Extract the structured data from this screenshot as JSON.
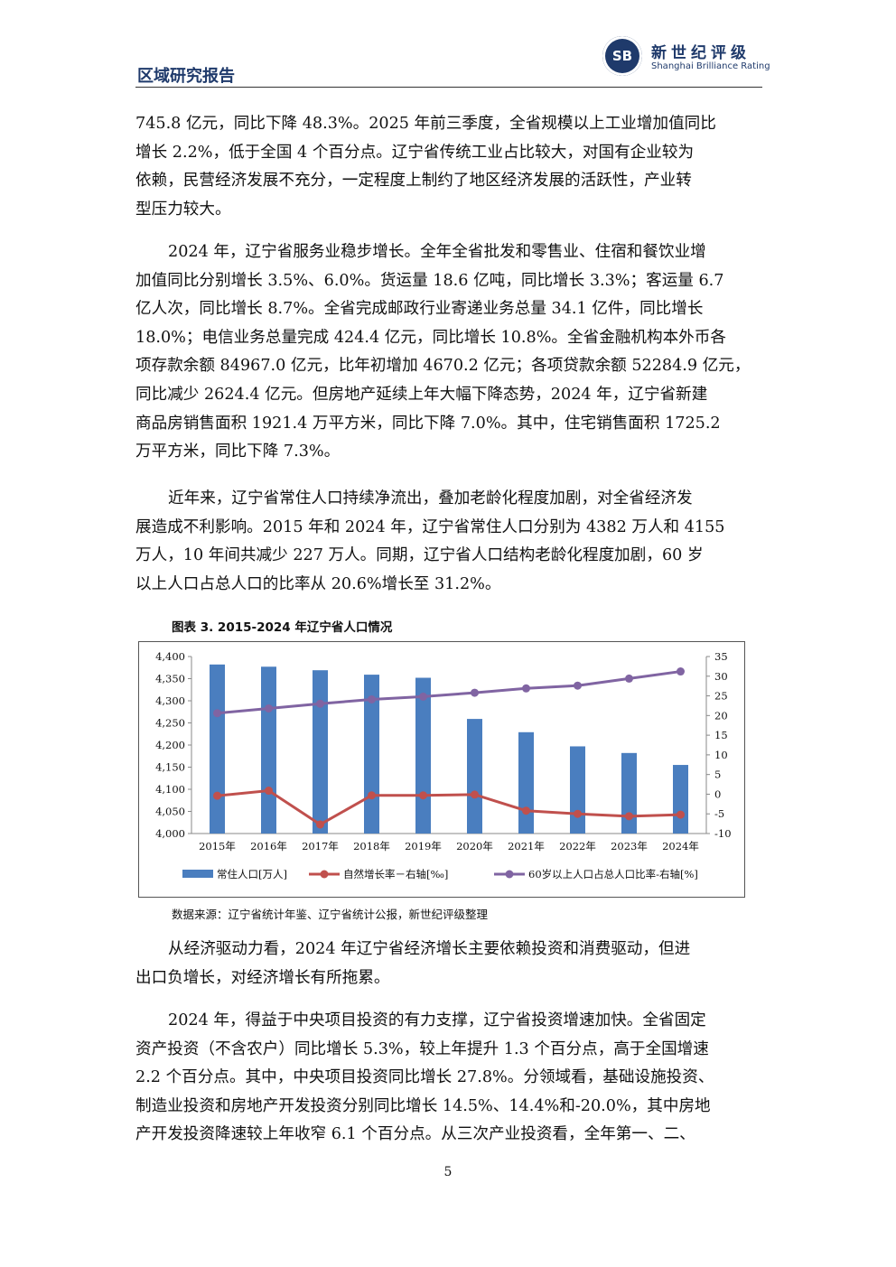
{
  "header": {
    "section_title": "区域研究报告",
    "brand_cn": "新世纪评级",
    "brand_en": "Shanghai Brilliance Rating",
    "logo_text": "SB"
  },
  "paragraphs": [
    {
      "lines": [
        "745.8 亿元，同比下降 48.3%。2025 年前三季度，全省规模以上工业增加值同比",
        "增长 2.2%，低于全国 4 个百分点。辽宁省传统工业占比较大，对国有企业较为",
        "依赖，民营经济发展不充分，一定程度上制约了地区经济发展的活跃性，产业转",
        "型压力较大。"
      ]
    },
    {
      "lines": [
        "2024 年，辽宁省服务业稳步增长。全年全省批发和零售业、住宿和餐饮业增",
        "加值同比分别增长 3.5%、6.0%。货运量 18.6 亿吨，同比增长 3.3%；客运量 6.7",
        "亿人次，同比增长 8.7%。全省完成邮政行业寄递业务总量 34.1 亿件，同比增长",
        "18.0%；电信业务总量完成 424.4 亿元，同比增长 10.8%。全省金融机构本外币各",
        "项存款余额 84967.0 亿元，比年初增加 4670.2 亿元；各项贷款余额 52284.9 亿元，",
        "同比减少 2624.4 亿元。但房地产延续上年大幅下降态势，2024 年，辽宁省新建",
        "商品房销售面积 1921.4 万平方米，同比下降 7.0%。其中，住宅销售面积 1725.2",
        "万平方米，同比下降 7.3%。"
      ]
    },
    {
      "lines": [
        "近年来，辽宁省常住人口持续净流出，叠加老龄化程度加剧，对全省经济发",
        "展造成不利影响。2015 年和 2024 年，辽宁省常住人口分别为 4382 万人和 4155",
        "万人，10 年间共减少 227 万人。同期，辽宁省人口结构老龄化程度加剧，60 岁",
        "以上人口占总人口的比率从 20.6%增长至 31.2%。"
      ]
    },
    {
      "lines": [
        "从经济驱动力看，2024 年辽宁省经济增长主要依赖投资和消费驱动，但进",
        "出口负增长，对经济增长有所拖累。"
      ]
    },
    {
      "lines": [
        "2024 年，得益于中央项目投资的有力支撑，辽宁省投资增速加快。全省固定",
        "资产投资（不含农户）同比增长 5.3%，较上年提升 1.3 个百分点，高于全国增速",
        "2.2 个百分点。其中，中央项目投资同比增长 27.8%。分领域看，基础设施投资、",
        "制造业投资和房地产开发投资分别同比增长 14.5%、14.4%和-20.0%，其中房地",
        "产开发投资降速较上年收窄 6.1 个百分点。从三次产业投资看，全年第一、二、"
      ]
    }
  ],
  "figure": {
    "title": "图表 3.   2015-2024 年辽宁省人口情况",
    "source": "数据来源：辽宁省统计年鉴、辽宁省统计公报，新世纪评级整理"
  },
  "chart_data": {
    "type": "bar",
    "categories": [
      "2015年",
      "2016年",
      "2017年",
      "2018年",
      "2019年",
      "2020年",
      "2021年",
      "2022年",
      "2023年",
      "2024年"
    ],
    "series": [
      {
        "name": "常住人口[万人]",
        "type": "bar",
        "axis": "left",
        "color": "#4a7ebf",
        "values": [
          4382,
          4377,
          4369,
          4359,
          4352,
          4259,
          4229,
          4197,
          4182,
          4155
        ]
      },
      {
        "name": "自然增长率－右轴[‰]",
        "type": "line",
        "axis": "right",
        "color": "#c0504d",
        "values": [
          -0.4,
          0.9,
          -7.7,
          -0.3,
          -0.3,
          -0.1,
          -4.2,
          -5.0,
          -5.6,
          -5.2
        ]
      },
      {
        "name": "60岁以上人口占总人口比率-右轴[%]",
        "type": "line",
        "axis": "right",
        "color": "#8064a2",
        "values": [
          20.6,
          21.8,
          23.0,
          24.1,
          24.8,
          25.8,
          26.9,
          27.6,
          29.4,
          31.2
        ]
      }
    ],
    "left_ylim": [
      4000,
      4400
    ],
    "left_ticks": [
      "4,000",
      "4,050",
      "4,100",
      "4,150",
      "4,200",
      "4,250",
      "4,300",
      "4,350",
      "4,400"
    ],
    "right_ylim": [
      -10,
      35
    ],
    "right_ticks": [
      "-10",
      "-5",
      "0",
      "5",
      "10",
      "15",
      "20",
      "25",
      "30",
      "35"
    ],
    "grid": false,
    "legend_position": "bottom"
  },
  "page_number": "5"
}
